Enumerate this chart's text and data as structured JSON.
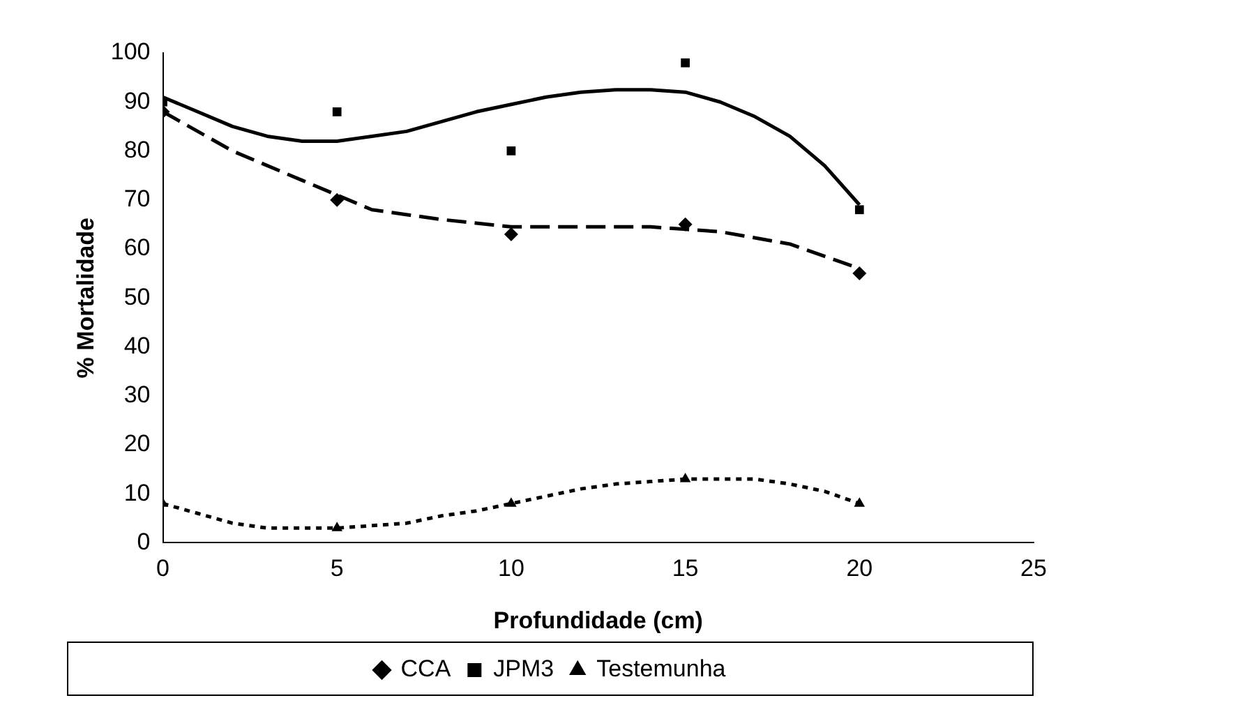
{
  "chart_data": {
    "type": "scatter",
    "xlabel": "Profundidade (cm)",
    "ylabel": "% Mortalidade",
    "xlim": [
      0,
      25
    ],
    "xticks": [
      0,
      5,
      10,
      15,
      20,
      25
    ],
    "ylim": [
      0,
      100
    ],
    "yticks": [
      0,
      10,
      20,
      30,
      40,
      50,
      60,
      70,
      80,
      90,
      100
    ],
    "grid": false,
    "legend": "bottom",
    "series": [
      {
        "name": "CCA",
        "color": "#000000",
        "marker": "diamond",
        "x": [
          0,
          5,
          10,
          15,
          20
        ],
        "values": [
          88,
          70,
          63,
          65,
          55
        ]
      },
      {
        "name": "JPM3",
        "color": "#000000",
        "marker": "square",
        "x": [
          0,
          5,
          10,
          15,
          20
        ],
        "values": [
          90,
          88,
          80,
          98,
          68
        ]
      },
      {
        "name": "Testemunha",
        "color": "#000000",
        "marker": "triangle",
        "x": [
          0,
          5,
          10,
          15,
          20
        ],
        "values": [
          8,
          3,
          8,
          13,
          8
        ]
      },
      {
        "type": "line",
        "color": "#000000",
        "marker": "none",
        "line_style": "dashed",
        "x": [
          0,
          2,
          4,
          5,
          6,
          8,
          10,
          12,
          14,
          15,
          16,
          18,
          20
        ],
        "values": [
          88,
          80,
          74,
          71,
          68,
          66,
          64.5,
          64.5,
          64.5,
          64,
          63.5,
          61,
          56
        ]
      },
      {
        "type": "line",
        "color": "#000000",
        "marker": "none",
        "line_style": "solid",
        "x": [
          0,
          1,
          2,
          3,
          4,
          5,
          6,
          7,
          8,
          9,
          10,
          11,
          12,
          13,
          14,
          15,
          16,
          17,
          18,
          19,
          20
        ],
        "values": [
          91,
          88,
          85,
          83,
          82,
          82,
          83,
          84,
          86,
          88,
          89.5,
          91,
          92,
          92.5,
          92.5,
          92,
          90,
          87,
          83,
          77,
          69
        ]
      },
      {
        "type": "line",
        "color": "#000000",
        "marker": "none",
        "line_style": "dotted",
        "x": [
          0,
          1,
          2,
          3,
          4,
          5,
          6,
          7,
          8,
          9,
          10,
          11,
          12,
          13,
          14,
          15,
          16,
          17,
          18,
          19,
          20
        ],
        "values": [
          8,
          6,
          4,
          3,
          3,
          3,
          3.5,
          4,
          5.5,
          6.5,
          8,
          9.5,
          11,
          12,
          12.5,
          13,
          13,
          13,
          12,
          10.5,
          8
        ]
      }
    ]
  }
}
